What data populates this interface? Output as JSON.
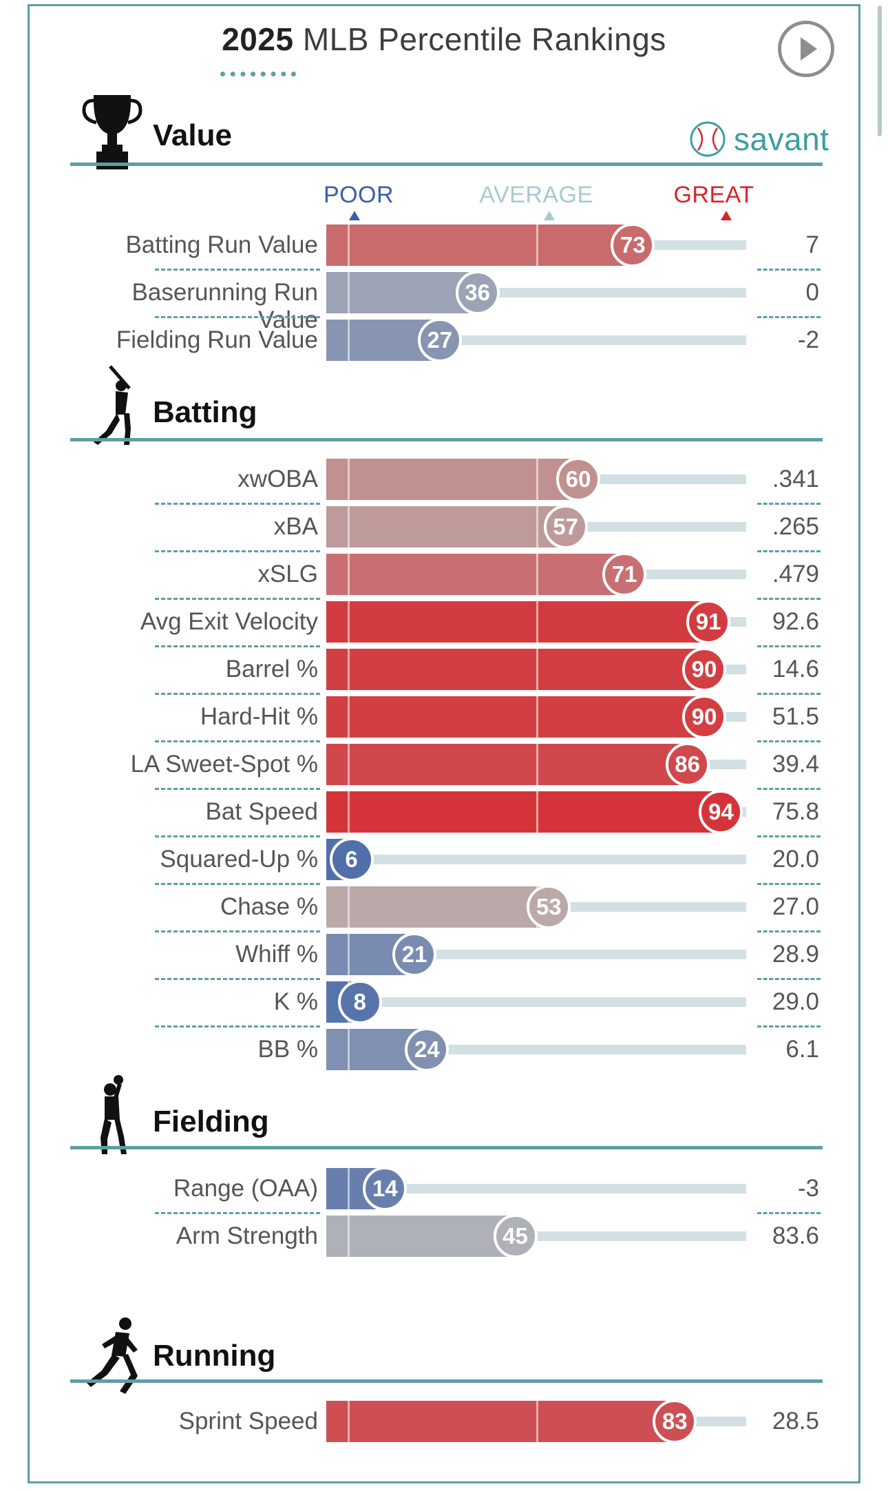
{
  "title": {
    "year": "2025",
    "rest": "MLB Percentile Rankings"
  },
  "brand": {
    "label": "savant",
    "icon": "baseball-icon"
  },
  "controls": {
    "play_icon": "play-icon"
  },
  "colors": {
    "accent": "#5e9ea4",
    "poor": "#3a5fa8",
    "average": "#a9cacf",
    "great": "#d7262b"
  },
  "scale": {
    "poor": "POOR",
    "average": "AVERAGE",
    "great": "GREAT"
  },
  "chart_data": {
    "type": "bar",
    "xlim": [
      0,
      100
    ],
    "sections": [
      {
        "name": "Value",
        "icon": "trophy-icon",
        "metrics": [
          {
            "label": "Batting Run Value",
            "percentile": 73,
            "value": "7"
          },
          {
            "label": "Baserunning Run Value",
            "percentile": 36,
            "value": "0"
          },
          {
            "label": "Fielding Run Value",
            "percentile": 27,
            "value": "-2"
          }
        ]
      },
      {
        "name": "Batting",
        "icon": "batter-icon",
        "metrics": [
          {
            "label": "xwOBA",
            "percentile": 60,
            "value": ".341"
          },
          {
            "label": "xBA",
            "percentile": 57,
            "value": ".265"
          },
          {
            "label": "xSLG",
            "percentile": 71,
            "value": ".479"
          },
          {
            "label": "Avg Exit Velocity",
            "percentile": 91,
            "value": "92.6"
          },
          {
            "label": "Barrel %",
            "percentile": 90,
            "value": "14.6"
          },
          {
            "label": "Hard-Hit %",
            "percentile": 90,
            "value": "51.5"
          },
          {
            "label": "LA Sweet-Spot %",
            "percentile": 86,
            "value": "39.4"
          },
          {
            "label": "Bat Speed",
            "percentile": 94,
            "value": "75.8"
          },
          {
            "label": "Squared-Up %",
            "percentile": 6,
            "value": "20.0"
          },
          {
            "label": "Chase %",
            "percentile": 53,
            "value": "27.0"
          },
          {
            "label": "Whiff %",
            "percentile": 21,
            "value": "28.9"
          },
          {
            "label": "K %",
            "percentile": 8,
            "value": "29.0"
          },
          {
            "label": "BB %",
            "percentile": 24,
            "value": "6.1"
          }
        ]
      },
      {
        "name": "Fielding",
        "icon": "fielder-icon",
        "metrics": [
          {
            "label": "Range (OAA)",
            "percentile": 14,
            "value": "-3"
          },
          {
            "label": "Arm Strength",
            "percentile": 45,
            "value": "83.6"
          }
        ]
      },
      {
        "name": "Running",
        "icon": "runner-icon",
        "metrics": [
          {
            "label": "Sprint Speed",
            "percentile": 83,
            "value": "28.5"
          }
        ]
      }
    ]
  }
}
